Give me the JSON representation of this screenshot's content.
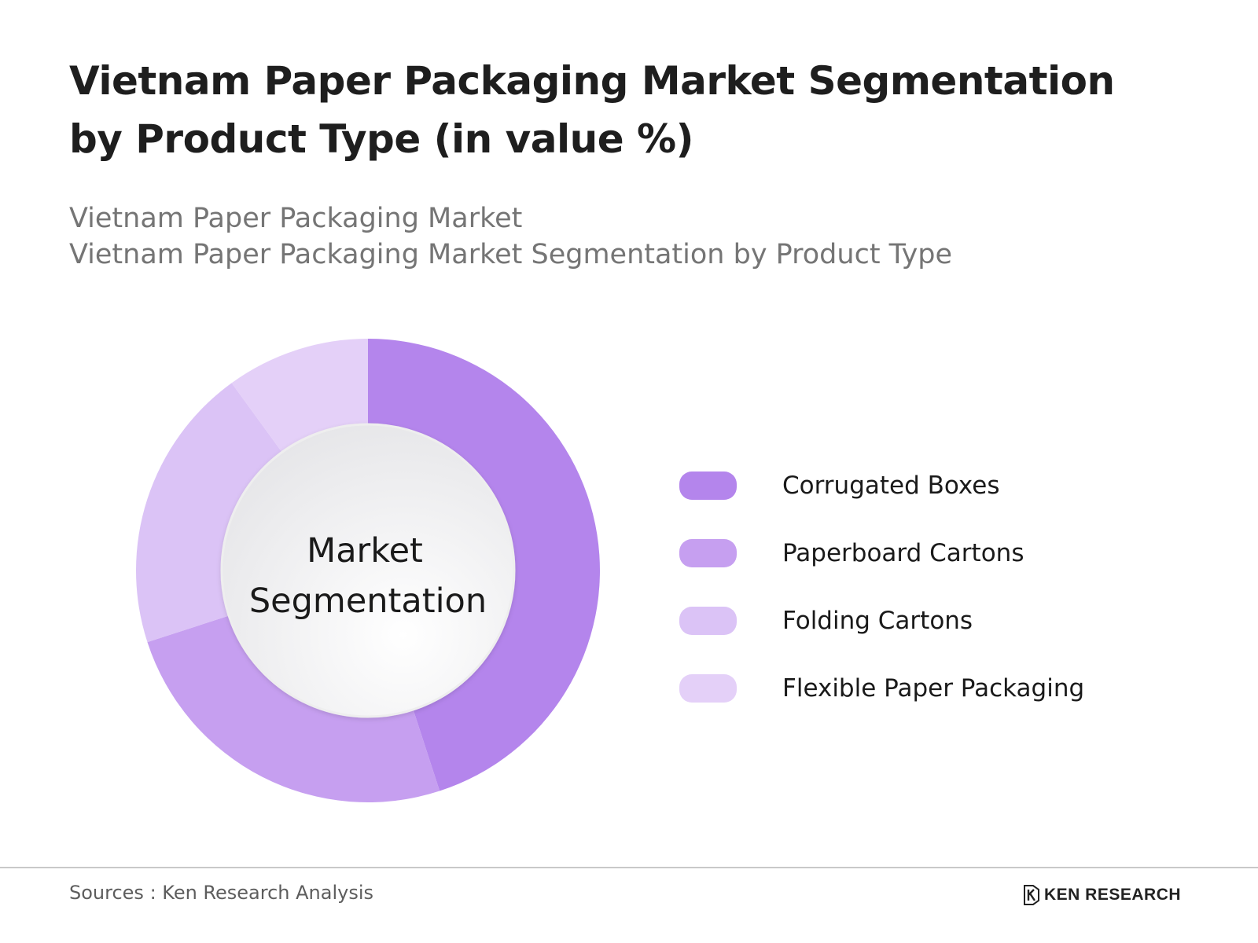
{
  "title": "Vietnam Paper Packaging Market Segmentation by Product Type (in value %)",
  "subtitle_lines": [
    "Vietnam Paper Packaging Market",
    "Vietnam Paper Packaging Market Segmentation by Product Type"
  ],
  "chart_data": {
    "type": "pie",
    "variant": "donut",
    "center_label_lines": [
      "Market",
      "Segmentation"
    ],
    "categories": [
      "Corrugated Boxes",
      "Paperboard Cartons",
      "Folding Cartons",
      "Flexible Paper Packaging"
    ],
    "values": [
      45,
      25,
      20,
      10
    ],
    "colors": [
      "#b485ec",
      "#c69ff0",
      "#dbc3f6",
      "#e4d0f8"
    ],
    "legend_position": "right"
  },
  "footer": {
    "sources": "Sources : Ken Research Analysis",
    "brand": "KEN RESEARCH",
    "brand_icon": "ken-research-logo-icon"
  }
}
